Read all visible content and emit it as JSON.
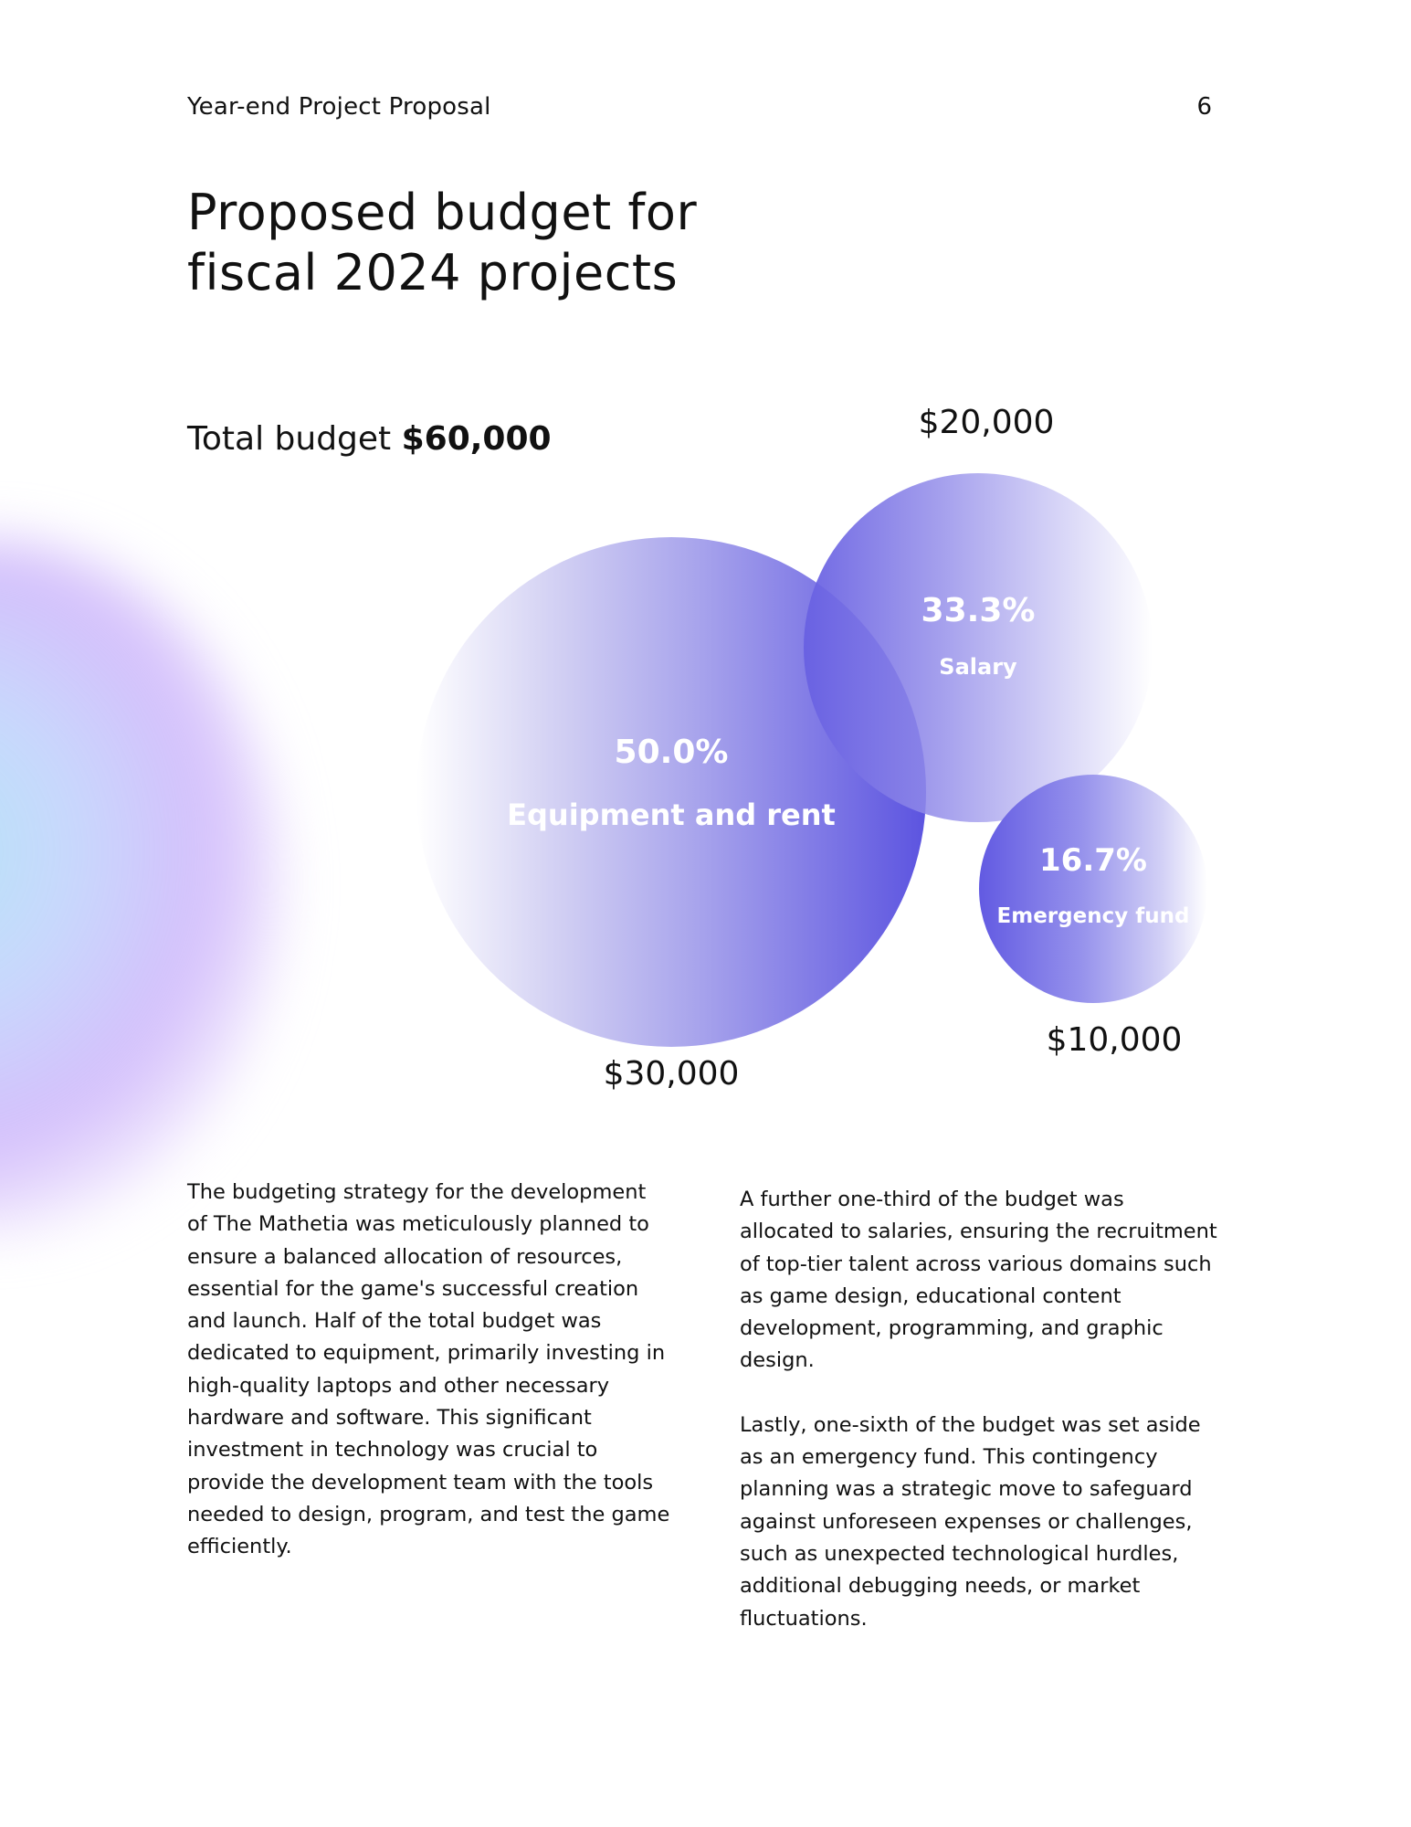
{
  "header": {
    "title": "Year-end Project Proposal",
    "page_number": "6"
  },
  "heading": "Proposed budget for fiscal 2024 projects",
  "total_budget": {
    "label": "Total budget",
    "amount": "$60,000"
  },
  "bubbles": {
    "equipment": {
      "percent": "50.0%",
      "label": "Equipment and rent",
      "amount": "$30,000",
      "share": 0.5
    },
    "salary": {
      "percent": "33.3%",
      "label": "Salary",
      "amount": "$20,000",
      "share": 0.333
    },
    "emergency": {
      "percent": "16.7%",
      "label": "Emergency fund",
      "amount": "$10,000",
      "share": 0.167
    }
  },
  "colors": {
    "accent": "#5c54e0",
    "text": "#111111"
  },
  "body": {
    "left_paragraph": "The budgeting strategy for the development of The Mathetia was meticulously planned to ensure a balanced allocation of resources, essential for the game's successful creation and launch. Half of the total budget was dedicated to equipment, primarily investing in high-quality laptops and other necessary hardware and software. This significant investment in technology was crucial to provide the development team with the tools needed to design, program, and test the game efficiently.",
    "right_paragraph_1": "A further one-third of the budget was allocated to salaries, ensuring the recruitment of top-tier talent across various domains such as game design, educational content development, programming, and graphic design.",
    "right_paragraph_2": "Lastly, one-sixth of the budget was set aside as an emergency fund. This contingency planning was a strategic move to safeguard against unforeseen expenses or challenges, such as unexpected technological hurdles, additional debugging needs, or market fluctuations."
  }
}
